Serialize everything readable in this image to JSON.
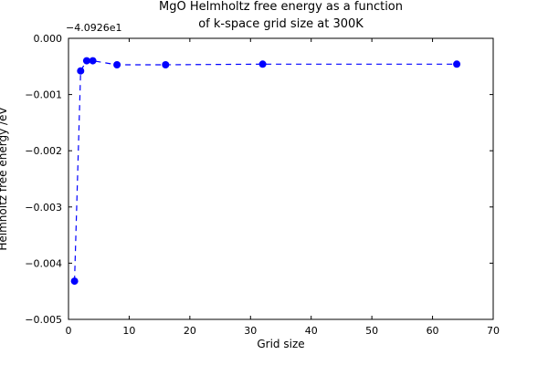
{
  "chart_data": {
    "type": "line",
    "title_line1": "MgO Helmholtz free energy as a function",
    "title_line2": "of k-space grid size at 300K",
    "xlabel": "Grid size",
    "ylabel": "Helmholtz free energy /eV",
    "y_offset_text": "−4.0926e1",
    "x": [
      1,
      2,
      3,
      4,
      8,
      16,
      32,
      64
    ],
    "y": [
      -0.00432,
      -0.00058,
      -0.0004,
      -0.0004,
      -0.00047,
      -0.00047,
      -0.00046,
      -0.00046
    ],
    "xlim": [
      0,
      70
    ],
    "ylim": [
      -0.005,
      0
    ],
    "xticks": [
      0,
      10,
      20,
      30,
      40,
      50,
      60,
      70
    ],
    "xtick_labels": [
      "0",
      "10",
      "20",
      "30",
      "40",
      "50",
      "60",
      "70"
    ],
    "yticks": [
      0,
      -0.001,
      -0.002,
      -0.003,
      -0.004,
      -0.005
    ],
    "ytick_labels": [
      "0.000",
      "−0.001",
      "−0.002",
      "−0.003",
      "−0.004",
      "−0.005"
    ],
    "line_color": "#0000ff",
    "marker_color": "#0000ff",
    "line_style": "dashed",
    "marker": "circle",
    "grid": false,
    "legend_position": "none"
  }
}
